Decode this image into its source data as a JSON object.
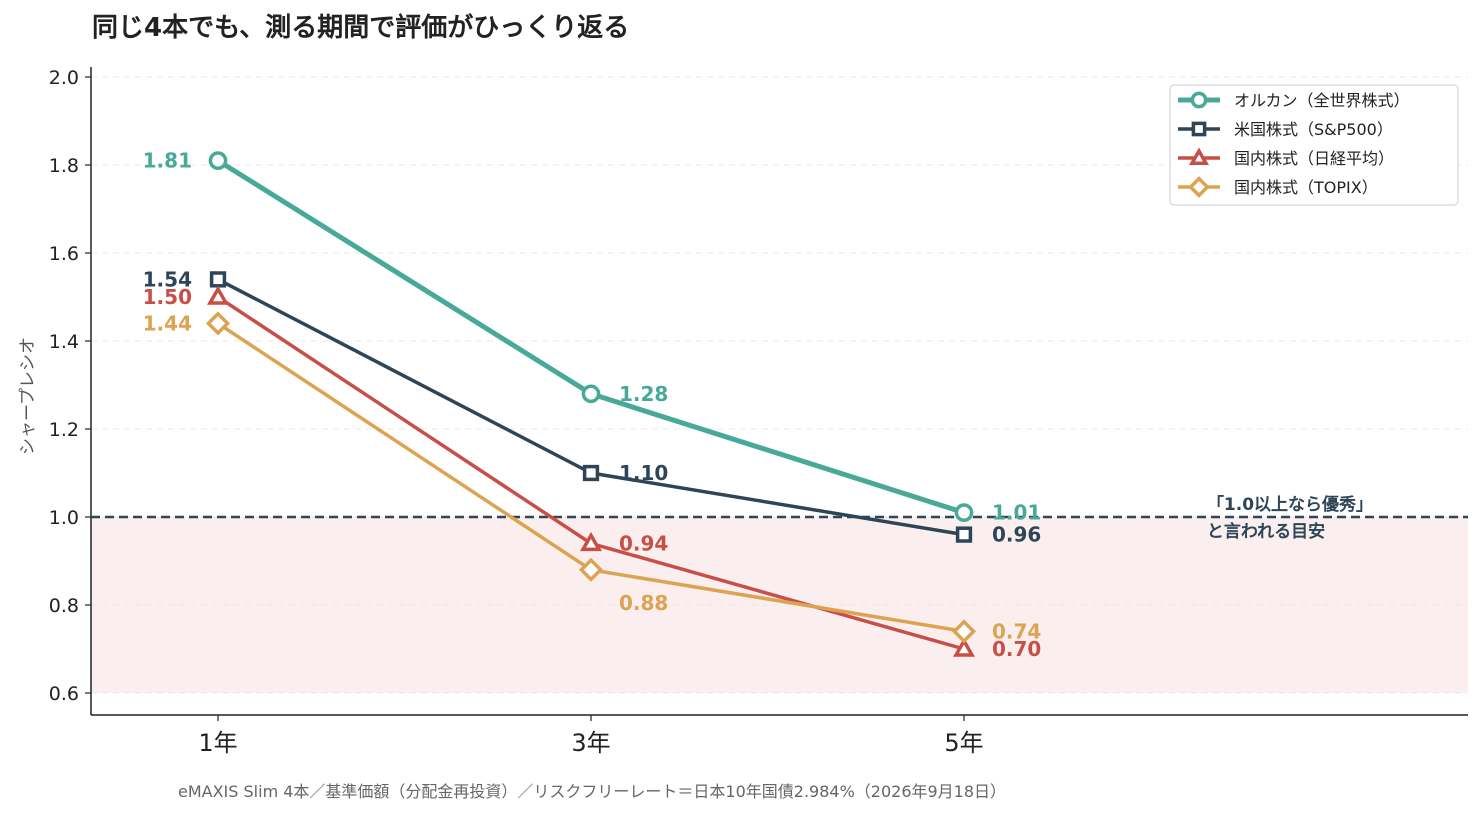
{
  "chart_data": {
    "type": "line",
    "title": "同じ4本でも、測る期間で評価がひっくり返る",
    "ylabel": "シャープレシオ",
    "xlabel": "",
    "categories": [
      "1年",
      "3年",
      "5年"
    ],
    "ylim": [
      0.55,
      2.02
    ],
    "yticks": [
      "0.6",
      "0.8",
      "1.0",
      "1.2",
      "1.4",
      "1.6",
      "1.8",
      "2.0"
    ],
    "grid": true,
    "legend_position": "top-right",
    "series": [
      {
        "name": "オルカン（全世界株式）",
        "values": [
          1.81,
          1.28,
          1.01
        ],
        "labels": [
          "1.81",
          "1.28",
          "1.01"
        ],
        "color": "#48a999",
        "marker": "circle",
        "width": 5
      },
      {
        "name": "米国株式（S&P500）",
        "values": [
          1.54,
          1.1,
          0.96
        ],
        "labels": [
          "1.54",
          "1.10",
          "0.96"
        ],
        "color": "#2e4457",
        "marker": "square",
        "width": 3.5
      },
      {
        "name": "国内株式（日経平均）",
        "values": [
          1.5,
          0.94,
          0.7
        ],
        "labels": [
          "1.50",
          "0.94",
          "0.70"
        ],
        "color": "#c84f48",
        "marker": "triangle",
        "width": 3.5
      },
      {
        "name": "国内株式（TOPIX）",
        "values": [
          1.44,
          0.88,
          0.74
        ],
        "labels": [
          "1.44",
          "0.88",
          "0.74"
        ],
        "color": "#dca352",
        "marker": "diamond",
        "width": 3.5
      }
    ],
    "reference_line": {
      "value": 1.0,
      "color": "#2e4457",
      "label_line1": "「1.0以上なら優秀」",
      "label_line2": "と言われる目安"
    },
    "shaded_region": {
      "from": 0.6,
      "to": 1.0,
      "color": "#faefee"
    },
    "footnote": "eMAXIS Slim 4本／基準価額（分配金再投資）／リスクフリーレート＝日本10年国債2.984%（2026年9月18日）"
  }
}
